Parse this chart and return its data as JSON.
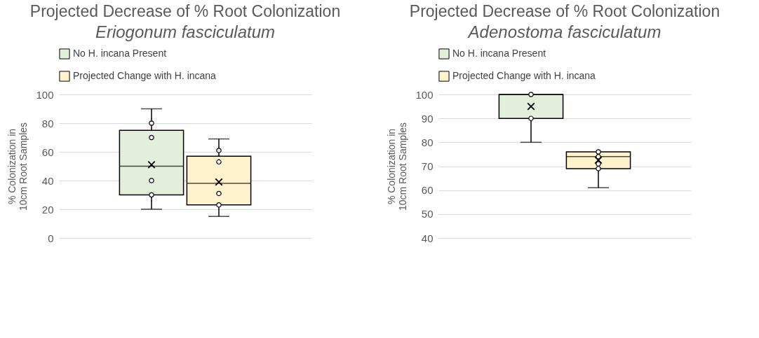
{
  "chart_data": [
    {
      "type": "box",
      "title": "Projected Decrease of % Root Colonization",
      "subtitle": "Eriogonum fasciculatum",
      "ylabel": "% Colonization in 10cm Root Samples",
      "categories": [
        null
      ],
      "ylim": [
        0,
        100
      ],
      "yticks": [
        0,
        20,
        40,
        60,
        80,
        100
      ],
      "grid": "y",
      "legend": "top",
      "tick_labels": "y",
      "series": [
        {
          "name": "No H. incana Present",
          "color": "#e2efda",
          "boxes": [
            {
              "low": 20,
              "q1": 30,
              "median": 50,
              "q3": 75,
              "high": 90,
              "mean": 51,
              "outliers": [
                30,
                40,
                70,
                80
              ]
            }
          ]
        },
        {
          "name": "Projected Change with H. incana",
          "color": "#fff2cc",
          "boxes": [
            {
              "low": 15,
              "q1": 23,
              "median": 38,
              "q3": 57,
              "high": 69,
              "mean": 39,
              "outliers": [
                23,
                31,
                53,
                61
              ]
            }
          ]
        }
      ]
    },
    {
      "type": "box",
      "title": "Projected Decrease of % Root Colonization",
      "subtitle": "Adenostoma fasciculatum",
      "ylabel": "% Colonization in 10cm Root Samples",
      "categories": [
        null
      ],
      "ylim": [
        40,
        100
      ],
      "yticks": [
        40,
        50,
        60,
        70,
        80,
        90,
        100
      ],
      "grid": "y",
      "legend": "top",
      "tick_labels": "y",
      "series": [
        {
          "name": "No H. incana Present",
          "color": "#e2efda",
          "boxes": [
            {
              "low": 80,
              "q1": 90,
              "median": 100,
              "q3": 100,
              "high": 100,
              "mean": 95,
              "outliers": [
                90,
                100
              ]
            }
          ]
        },
        {
          "name": "Projected Change with H. incana",
          "color": "#fff2cc",
          "boxes": [
            {
              "low": 61,
              "q1": 69,
              "median": 74,
              "q3": 76,
              "high": 76,
              "mean": 72.5,
              "outliers": [
                69,
                71,
                74,
                76
              ]
            }
          ]
        }
      ]
    }
  ]
}
